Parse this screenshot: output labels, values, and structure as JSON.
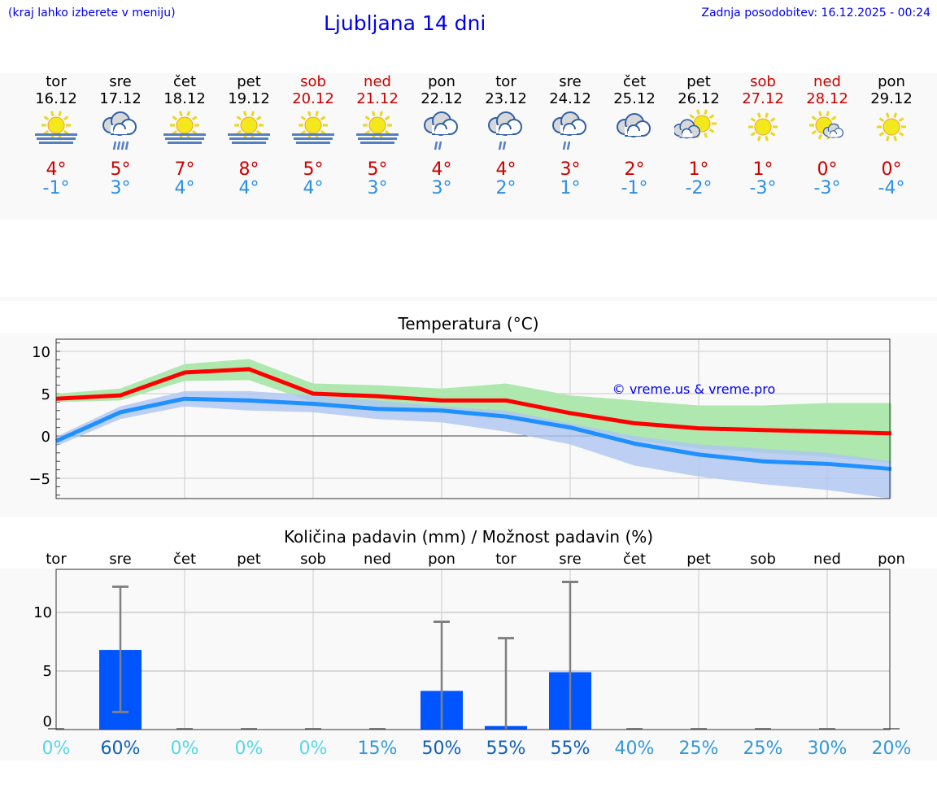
{
  "header": {
    "note": "(kraj lahko izberete v meniju)",
    "title": "Ljubljana 14 dni",
    "updated": "Zadnja posodobitev: 16.12.2025 - 00:24"
  },
  "days": [
    {
      "name": "tor",
      "date": "16.12",
      "weekend": false,
      "icon": "sun-fog",
      "max": "4°",
      "min": "-1°"
    },
    {
      "name": "sre",
      "date": "17.12",
      "weekend": false,
      "icon": "cloud-rain",
      "max": "5°",
      "min": "3°"
    },
    {
      "name": "čet",
      "date": "18.12",
      "weekend": false,
      "icon": "sun-fog",
      "max": "7°",
      "min": "4°"
    },
    {
      "name": "pet",
      "date": "19.12",
      "weekend": false,
      "icon": "sun-fog",
      "max": "8°",
      "min": "4°"
    },
    {
      "name": "sob",
      "date": "20.12",
      "weekend": true,
      "icon": "sun-fog",
      "max": "5°",
      "min": "4°"
    },
    {
      "name": "ned",
      "date": "21.12",
      "weekend": true,
      "icon": "sun-fog",
      "max": "5°",
      "min": "3°"
    },
    {
      "name": "pon",
      "date": "22.12",
      "weekend": false,
      "icon": "cloud-light-rain",
      "max": "4°",
      "min": "3°"
    },
    {
      "name": "tor",
      "date": "23.12",
      "weekend": false,
      "icon": "cloud-light-rain",
      "max": "4°",
      "min": "2°"
    },
    {
      "name": "sre",
      "date": "24.12",
      "weekend": false,
      "icon": "cloud-light-rain",
      "max": "3°",
      "min": "1°"
    },
    {
      "name": "čet",
      "date": "25.12",
      "weekend": false,
      "icon": "cloudy",
      "max": "2°",
      "min": "-1°"
    },
    {
      "name": "pet",
      "date": "26.12",
      "weekend": false,
      "icon": "cloud-sun",
      "max": "1°",
      "min": "-2°"
    },
    {
      "name": "sob",
      "date": "27.12",
      "weekend": true,
      "icon": "sun",
      "max": "1°",
      "min": "-3°"
    },
    {
      "name": "ned",
      "date": "28.12",
      "weekend": true,
      "icon": "sun-cloud",
      "max": "0°",
      "min": "-3°"
    },
    {
      "name": "pon",
      "date": "29.12",
      "weekend": false,
      "icon": "sun",
      "max": "0°",
      "min": "-4°"
    }
  ],
  "colors": {
    "max": "#ff0000",
    "min": "#1e90ff",
    "max_band": "#aee8ae",
    "min_band": "#aec6f2",
    "bar": "#0055ff",
    "err": "#808080"
  },
  "chart_data": [
    {
      "type": "line",
      "title": "Temperatura (°C)",
      "watermark": "© vreme.us & vreme.pro",
      "ylim": [
        -7.4,
        11.4
      ],
      "yticks": [
        -5,
        0,
        5,
        10
      ],
      "ytick_labels": [
        "−5",
        "0",
        "5",
        "10"
      ],
      "grid": true,
      "categories": [
        "16.12",
        "17.12",
        "18.12",
        "19.12",
        "20.12",
        "21.12",
        "22.12",
        "23.12",
        "24.12",
        "25.12",
        "26.12",
        "27.12",
        "28.12",
        "29.12"
      ],
      "series": [
        {
          "key": "max",
          "values": [
            4.4,
            4.8,
            7.5,
            7.9,
            5.0,
            4.7,
            4.2,
            4.2,
            2.7,
            1.5,
            0.9,
            0.7,
            0.5,
            0.3
          ],
          "band_upper": [
            5.0,
            5.6,
            8.5,
            9.1,
            6.2,
            6.0,
            5.6,
            6.2,
            4.8,
            4.2,
            3.6,
            3.6,
            3.9,
            3.9
          ],
          "band_lower": [
            4.0,
            4.2,
            6.5,
            6.6,
            4.0,
            3.5,
            3.0,
            2.5,
            1.0,
            -0.5,
            -1.5,
            -2.0,
            -2.5,
            -3.2
          ]
        },
        {
          "key": "min",
          "values": [
            -0.6,
            2.8,
            4.4,
            4.2,
            3.8,
            3.2,
            3.0,
            2.3,
            1.0,
            -0.9,
            -2.2,
            -3.0,
            -3.3,
            -3.9
          ],
          "band_upper": [
            -0.1,
            3.5,
            5.3,
            5.3,
            4.8,
            4.2,
            3.5,
            3.0,
            1.5,
            0.0,
            -1.0,
            -1.5,
            -2.0,
            -3.0
          ],
          "band_lower": [
            -1.2,
            2.0,
            3.5,
            3.0,
            2.8,
            2.0,
            1.6,
            0.5,
            -1.0,
            -3.5,
            -4.8,
            -5.7,
            -6.4,
            -7.4
          ]
        }
      ]
    },
    {
      "type": "bar",
      "title": "Količina padavin (mm) / Možnost padavin (%)",
      "ylim": [
        0,
        13.7
      ],
      "yticks": [
        0,
        5,
        10
      ],
      "ytick_labels": [
        "0",
        "5",
        "10"
      ],
      "grid": true,
      "categories": [
        "tor",
        "sre",
        "čet",
        "pet",
        "sob",
        "ned",
        "pon",
        "tor",
        "sre",
        "čet",
        "pet",
        "sob",
        "ned",
        "pon"
      ],
      "values": [
        0,
        6.8,
        0,
        0,
        0,
        0,
        3.3,
        0.3,
        4.9,
        0,
        0,
        0,
        0,
        0
      ],
      "err_low": [
        0,
        1.5,
        0,
        0,
        0,
        0,
        0,
        0,
        0,
        0,
        0,
        0,
        0,
        0
      ],
      "err_high": [
        0,
        12.2,
        0,
        0,
        0,
        0,
        9.2,
        7.8,
        12.6,
        0,
        0,
        0,
        0,
        0
      ],
      "probability": [
        "0%",
        "60%",
        "0%",
        "0%",
        "0%",
        "15%",
        "50%",
        "55%",
        "55%",
        "40%",
        "25%",
        "25%",
        "30%",
        "20%"
      ],
      "probability_values": [
        0,
        60,
        0,
        0,
        0,
        15,
        50,
        55,
        55,
        40,
        25,
        25,
        30,
        20
      ]
    }
  ]
}
